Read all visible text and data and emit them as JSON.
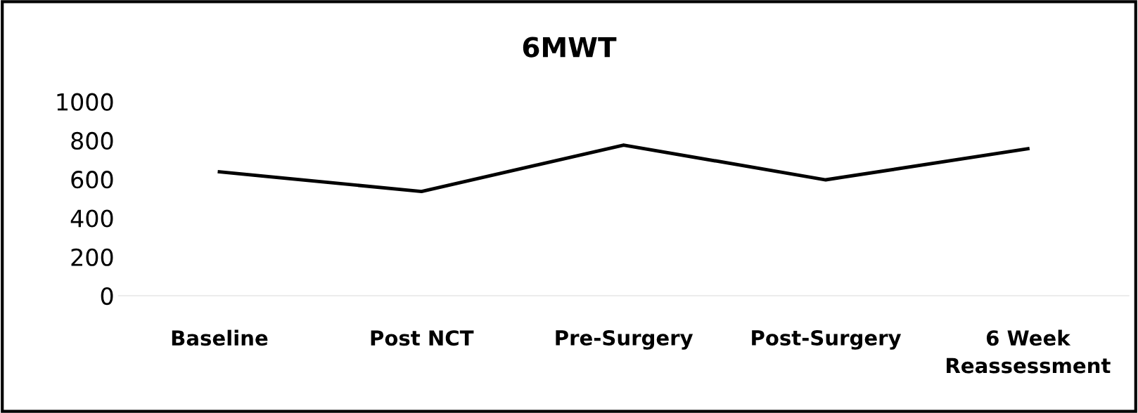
{
  "chart_data": {
    "type": "line",
    "title": "6MWT",
    "categories": [
      "Baseline",
      "Post NCT",
      "Pre-Surgery",
      "Post-Surgery",
      "6 Week\nReassessment"
    ],
    "series": [
      {
        "color": "#000000",
        "values": [
          638,
          537,
          776,
          597,
          757
        ]
      }
    ],
    "ylim": [
      0,
      1000
    ],
    "yticks": [
      0,
      200,
      400,
      600,
      800,
      1000
    ],
    "grid": false,
    "legend": false,
    "marker": "none",
    "line_style": "solid"
  }
}
